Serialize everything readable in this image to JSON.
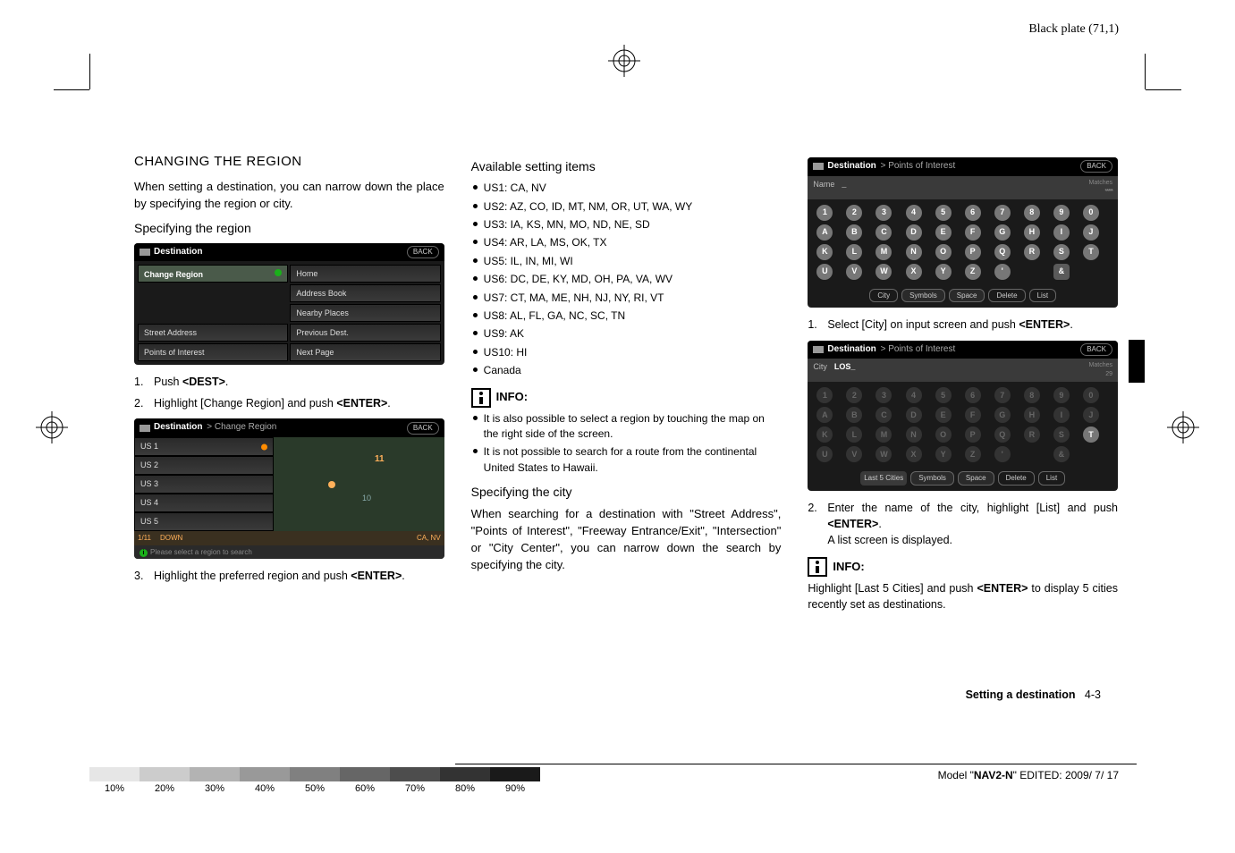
{
  "plate_label": "Black plate (71,1)",
  "col1": {
    "h2": "CHANGING THE REGION",
    "p1": "When setting a destination, you can narrow down the place by specifying the region or city.",
    "sub1": "Specifying the region",
    "ss1": {
      "title": "Destination",
      "back": "BACK",
      "cells": {
        "change_region": "Change Region",
        "home": "Home",
        "address_book": "Address Book",
        "nearby": "Nearby Places",
        "street": "Street Address",
        "prev": "Previous Dest.",
        "poi": "Points of Interest",
        "next": "Next Page"
      }
    },
    "step1": "Push <DEST>.",
    "step2": "Highlight [Change Region] and push <ENTER>.",
    "ss2": {
      "title": "Destination",
      "bc": " > Change Region",
      "back": "BACK",
      "items": [
        "US 1",
        "US 2",
        "US 3",
        "US 4",
        "US 5"
      ],
      "footer_left": "1/11",
      "footer_mid": "DOWN",
      "footer_right": "CA, NV",
      "tip": "Please select a region to search"
    },
    "step3": "Highlight the preferred region and push <ENTER>."
  },
  "col2": {
    "sub1": "Available setting items",
    "bullets": [
      "US1: CA, NV",
      "US2: AZ, CO, ID, MT, NM, OR, UT, WA, WY",
      "US3: IA, KS, MN, MO, ND, NE, SD",
      "US4: AR, LA, MS, OK, TX",
      "US5: IL, IN, MI, WI",
      "US6: DC, DE, KY, MD, OH, PA, VA, WV",
      "US7: CT, MA, ME, NH, NJ, NY, RI, VT",
      "US8: AL, FL, GA, NC, SC, TN",
      "US9: AK",
      "US10: HI",
      "Canada"
    ],
    "info_label": "INFO:",
    "info_bullets": [
      "It is also possible to select a region by touching the map on the right side of the screen.",
      "It is not possible to search for a route from the continental United States to Hawaii."
    ],
    "sub2": "Specifying the city",
    "p2": "When searching for a destination with \"Street Address\", \"Points of Interest\", \"Freeway Entrance/Exit\", \"Intersection\" or \"City Center\", you can narrow down the search by specifying the city."
  },
  "col3": {
    "ss3": {
      "title": "Destination",
      "bc": " > Points of Interest",
      "back": "BACK",
      "name_label": "Name",
      "name_val": "_",
      "matches_label": "Matches",
      "matches_val": "*****",
      "keys_row1": [
        "1",
        "2",
        "3",
        "4",
        "5",
        "6",
        "7",
        "8",
        "9",
        "0"
      ],
      "keys_row2": [
        "A",
        "B",
        "C",
        "D",
        "E",
        "F",
        "G",
        "H",
        "I",
        "J"
      ],
      "keys_row3": [
        "K",
        "L",
        "M",
        "N",
        "O",
        "P",
        "Q",
        "R",
        "S",
        "T"
      ],
      "keys_row4": [
        "U",
        "V",
        "W",
        "X",
        "Y",
        "Z",
        "'",
        " ",
        "&",
        " "
      ],
      "foot": {
        "city": "City",
        "symbols": "Symbols",
        "space": "Space",
        "delete": "Delete",
        "list": "List"
      }
    },
    "step1": "Select [City] on input screen and push <ENTER>.",
    "ss4": {
      "title": "Destination",
      "bc": " > Points of Interest",
      "back": "BACK",
      "name_label": "City",
      "name_val": "LOS_",
      "matches_label": "Matches",
      "matches_val": "29",
      "foot": {
        "last5": "Last 5 Cities",
        "symbols": "Symbols",
        "space": "Space",
        "delete": "Delete",
        "list": "List"
      }
    },
    "step2a": "Enter the name of the city, highlight [List] and push <ENTER>.",
    "step2b": "A list screen is displayed.",
    "info_label": "INFO:",
    "info_p": "Highlight [Last 5 Cities] and push <ENTER> to display 5 cities recently set as destinations."
  },
  "footer": {
    "section": "Setting a destination",
    "pagenum": "4-3",
    "model_prefix": "Model \"",
    "model": "NAV2-N",
    "model_suffix": "\"   EDITED:  2009/ 7/ 17"
  },
  "gradient": {
    "labels": [
      "10%",
      "20%",
      "30%",
      "40%",
      "50%",
      "60%",
      "70%",
      "80%",
      "90%"
    ],
    "colors": [
      "#e6e6e6",
      "#cccccc",
      "#b3b3b3",
      "#999999",
      "#808080",
      "#666666",
      "#4d4d4d",
      "#333333",
      "#1a1a1a"
    ]
  }
}
